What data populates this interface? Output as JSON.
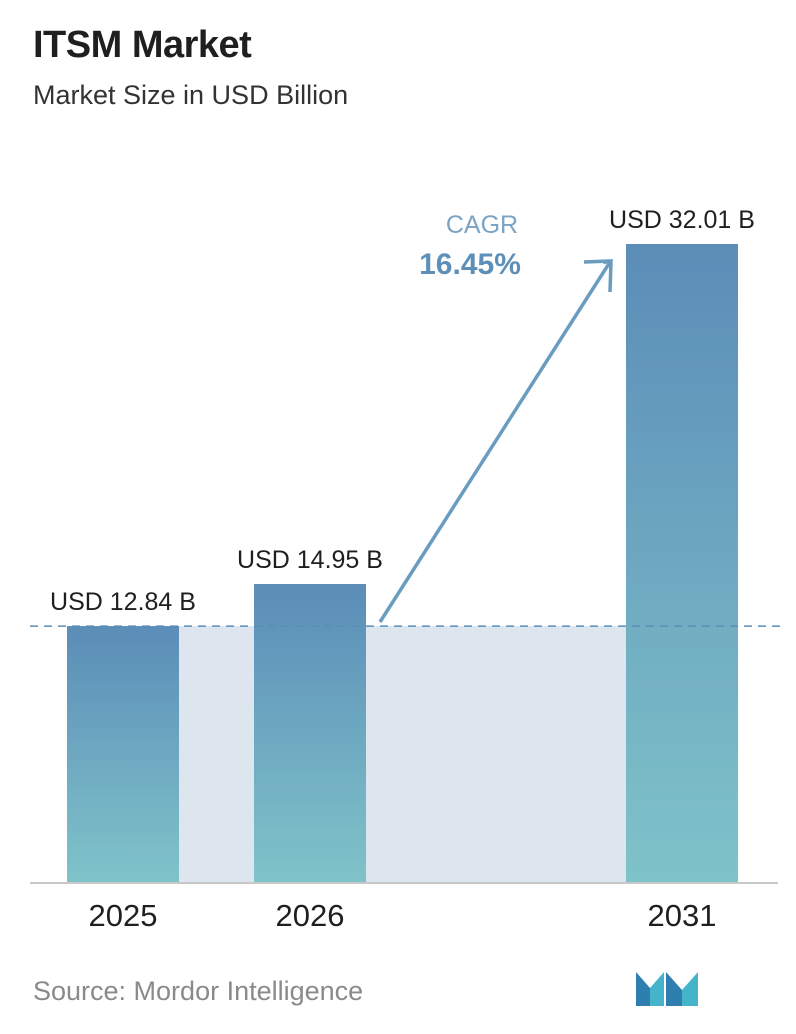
{
  "header": {
    "title": "ITSM Market",
    "subtitle": "Market Size in USD Billion"
  },
  "chart_data": {
    "type": "bar",
    "title": "ITSM Market",
    "subtitle": "Market Size in USD Billion",
    "xlabel": "",
    "ylabel": "",
    "categories": [
      "2025",
      "2026",
      "2031"
    ],
    "values": [
      12.84,
      14.95,
      32.01
    ],
    "data_labels": [
      "USD 12.84 B",
      "USD 14.95 B",
      "USD 32.01 B"
    ],
    "ylim": [
      0,
      32.01
    ],
    "grid": false,
    "reference_line": {
      "value": 12.84,
      "style": "dashed"
    },
    "annotation": {
      "label": "CAGR",
      "value": "16.45%",
      "arrow": "from 2026 bar to 2031 bar"
    }
  },
  "footer": {
    "source": "Source:  Mordor Intelligence",
    "logo": "mordor-intelligence-logo"
  },
  "colors": {
    "bar_top": "#5b8db8",
    "bar_bottom": "#7fc3c9",
    "band": "#dde6ee",
    "arrow": "#6a9cc0",
    "cagr_label": "#7aa3c4",
    "cagr_value": "#5d8fb8",
    "baseline": "#c8c8c8"
  }
}
